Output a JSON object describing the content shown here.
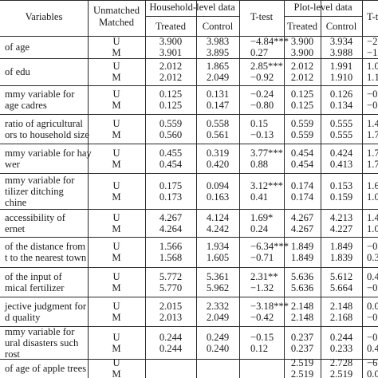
{
  "header": {
    "variables": "Variables",
    "unmatched": "Unmatched",
    "matched": "Matched",
    "household_level": "Household-level data",
    "ttest": "T-test",
    "plot_level": "Plot-level data",
    "ttest_cut": "T-t",
    "treated": "Treated",
    "control": "Control"
  },
  "rows": [
    {
      "label": [
        "of age"
      ],
      "u": "U",
      "m": "M",
      "hh_t": [
        "3.900",
        "3.901"
      ],
      "hh_c": [
        "3.983",
        "3.895"
      ],
      "tt": [
        "−4.84***",
        "0.27"
      ],
      "pl_t": [
        "3.900",
        "3.900"
      ],
      "pl_c": [
        "3.934",
        "3.988"
      ],
      "tt2": [
        "−2.",
        "−1.5"
      ]
    },
    {
      "label": [
        "of edu"
      ],
      "u": "U",
      "m": "M",
      "hh_t": [
        "2.012",
        "2.012"
      ],
      "hh_c": [
        "1.865",
        "2.049"
      ],
      "tt": [
        "2.85***",
        "−0.92"
      ],
      "pl_t": [
        "2.012",
        "2.012"
      ],
      "pl_c": [
        "1.991",
        "1.910"
      ],
      "tt2": [
        "1.0",
        "1.1"
      ]
    },
    {
      "label": [
        "mmy variable for",
        "age cadres"
      ],
      "u": "U",
      "m": "M",
      "hh_t": [
        "0.125",
        "0.125"
      ],
      "hh_c": [
        "0.131",
        "0.147"
      ],
      "tt": [
        "−0.24",
        "−0.80"
      ],
      "pl_t": [
        "0.125",
        "0.125"
      ],
      "pl_c": [
        "0.126",
        "0.134"
      ],
      "tt2": [
        "−0.",
        "−0."
      ]
    },
    {
      "label": [
        "ratio of agricultural",
        "ors to household size"
      ],
      "u": "U",
      "m": "M",
      "hh_t": [
        "0.559",
        "0.560"
      ],
      "hh_c": [
        "0.558",
        "0.561"
      ],
      "tt": [
        "0.15",
        "−0.13"
      ],
      "pl_t": [
        "0.559",
        "0.559"
      ],
      "pl_c": [
        "0.555",
        "0.555"
      ],
      "tt2": [
        "1.4",
        "1.7"
      ]
    },
    {
      "label": [
        "mmy variable for hay",
        "wer"
      ],
      "u": "U",
      "m": "M",
      "hh_t": [
        "0.455",
        "0.454"
      ],
      "hh_c": [
        "0.319",
        "0.420"
      ],
      "tt": [
        "3.77***",
        "0.88"
      ],
      "pl_t": [
        "0.454",
        "0.454"
      ],
      "pl_c": [
        "0.424",
        "0.413"
      ],
      "tt2": [
        "1.7",
        "1.7"
      ]
    },
    {
      "label": [
        "mmy variable for",
        "tilizer ditching",
        "chine"
      ],
      "u": "U",
      "m": "M",
      "hh_t": [
        "0.175",
        "0.173"
      ],
      "hh_c": [
        "0.094",
        "0.163"
      ],
      "tt": [
        "3.12***",
        "0.41"
      ],
      "pl_t": [
        "0.174",
        "0.174"
      ],
      "pl_c": [
        "0.153",
        "0.159"
      ],
      "tt2": [
        "1.6",
        "1.0"
      ]
    },
    {
      "label": [
        "accessibility of",
        "ernet"
      ],
      "u": "U",
      "m": "M",
      "hh_t": [
        "4.267",
        "4.264"
      ],
      "hh_c": [
        "4.124",
        "4.242"
      ],
      "tt": [
        "1.69*",
        "0.24"
      ],
      "pl_t": [
        "4.267",
        "4.267"
      ],
      "pl_c": [
        "4.213",
        "4.227"
      ],
      "tt2": [
        "1.4",
        "1.0"
      ]
    },
    {
      "label": [
        "of the distance from",
        "t to the nearest town"
      ],
      "u": "U",
      "m": "M",
      "hh_t": [
        "1.566",
        "1.568"
      ],
      "hh_c": [
        "1.934",
        "1.605"
      ],
      "tt": [
        "−6.34***",
        "−0.71"
      ],
      "pl_t": [
        "1.849",
        "1.849"
      ],
      "pl_c": [
        "1.849",
        "1.839"
      ],
      "tt2": [
        "−0.",
        "0.3"
      ]
    },
    {
      "label": [
        "of the input of",
        "mical fertilizer"
      ],
      "u": "U",
      "m": "M",
      "hh_t": [
        "5.772",
        "5.770"
      ],
      "hh_c": [
        "5.361",
        "5.962"
      ],
      "tt": [
        "2.31**",
        "−1.32"
      ],
      "pl_t": [
        "5.636",
        "5.636"
      ],
      "pl_c": [
        "5.612",
        "5.664"
      ],
      "tt2": [
        "0.4",
        "−0."
      ]
    },
    {
      "label": [
        "jective judgment for",
        "d quality"
      ],
      "u": "U",
      "m": "M",
      "hh_t": [
        "2.015",
        "2.013"
      ],
      "hh_c": [
        "2.332",
        "2.049"
      ],
      "tt": [
        "−3.18***",
        "−0.42"
      ],
      "pl_t": [
        "2.148",
        "2.148"
      ],
      "pl_c": [
        "2.148",
        "2.168"
      ],
      "tt2": [
        "0.0",
        "−0."
      ]
    },
    {
      "label": [
        "mmy variable for",
        "ural disasters such",
        "rost"
      ],
      "u": "U",
      "m": "M",
      "hh_t": [
        "0.244",
        "0.244"
      ],
      "hh_c": [
        "0.249",
        "0.240"
      ],
      "tt": [
        "−0.15",
        "0.12"
      ],
      "pl_t": [
        "0.237",
        "0.237"
      ],
      "pl_c": [
        "0.244",
        "0.233"
      ],
      "tt2": [
        "−0.",
        "0.4"
      ]
    },
    {
      "label": [
        "of age of apple trees"
      ],
      "u": "U",
      "m": "M",
      "hh_t": [
        "",
        ""
      ],
      "hh_c": [
        "",
        ""
      ],
      "tt": [
        "",
        ""
      ],
      "pl_t": [
        "2.519",
        "2.519"
      ],
      "pl_c": [
        "2.728",
        "2.519"
      ],
      "tt2": [
        "−6.",
        "0.0"
      ]
    }
  ]
}
